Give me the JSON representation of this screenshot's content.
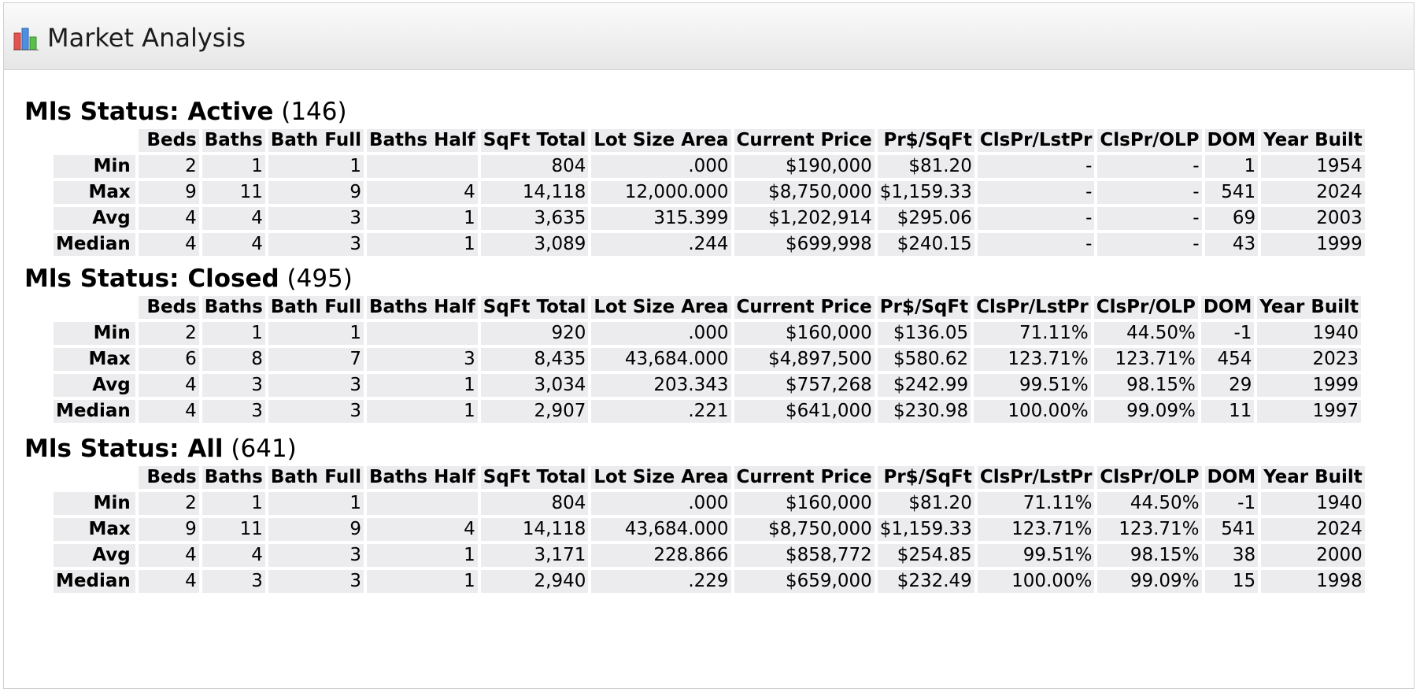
{
  "header": {
    "title": "Market Analysis",
    "icon": "bar-chart-icon"
  },
  "columns": [
    "Beds",
    "Baths",
    "Bath Full",
    "Baths Half",
    "SqFt Total",
    "Lot Size Area",
    "Current Price",
    "Pr$/SqFt",
    "ClsPr/LstPr",
    "ClsPr/OLP",
    "DOM",
    "Year Built"
  ],
  "sections": [
    {
      "label": "Mls Status: Active",
      "count": "(146)",
      "rows": [
        {
          "label": "Min",
          "values": [
            "2",
            "1",
            "1",
            "",
            "804",
            ".000",
            "$190,000",
            "$81.20",
            "-",
            "-",
            "1",
            "1954"
          ]
        },
        {
          "label": "Max",
          "values": [
            "9",
            "11",
            "9",
            "4",
            "14,118",
            "12,000.000",
            "$8,750,000",
            "$1,159.33",
            "-",
            "-",
            "541",
            "2024"
          ]
        },
        {
          "label": "Avg",
          "values": [
            "4",
            "4",
            "3",
            "1",
            "3,635",
            "315.399",
            "$1,202,914",
            "$295.06",
            "-",
            "-",
            "69",
            "2003"
          ]
        },
        {
          "label": "Median",
          "values": [
            "4",
            "4",
            "3",
            "1",
            "3,089",
            ".244",
            "$699,998",
            "$240.15",
            "-",
            "-",
            "43",
            "1999"
          ]
        }
      ]
    },
    {
      "label": "Mls Status: Closed",
      "count": "(495)",
      "rows": [
        {
          "label": "Min",
          "values": [
            "2",
            "1",
            "1",
            "",
            "920",
            ".000",
            "$160,000",
            "$136.05",
            "71.11%",
            "44.50%",
            "-1",
            "1940"
          ]
        },
        {
          "label": "Max",
          "values": [
            "6",
            "8",
            "7",
            "3",
            "8,435",
            "43,684.000",
            "$4,897,500",
            "$580.62",
            "123.71%",
            "123.71%",
            "454",
            "2023"
          ]
        },
        {
          "label": "Avg",
          "values": [
            "4",
            "3",
            "3",
            "1",
            "3,034",
            "203.343",
            "$757,268",
            "$242.99",
            "99.51%",
            "98.15%",
            "29",
            "1999"
          ]
        },
        {
          "label": "Median",
          "values": [
            "4",
            "3",
            "3",
            "1",
            "2,907",
            ".221",
            "$641,000",
            "$230.98",
            "100.00%",
            "99.09%",
            "11",
            "1997"
          ]
        }
      ]
    },
    {
      "label": "Mls Status: All",
      "count": "(641)",
      "rows": [
        {
          "label": "Min",
          "values": [
            "2",
            "1",
            "1",
            "",
            "804",
            ".000",
            "$160,000",
            "$81.20",
            "71.11%",
            "44.50%",
            "-1",
            "1940"
          ]
        },
        {
          "label": "Max",
          "values": [
            "9",
            "11",
            "9",
            "4",
            "14,118",
            "43,684.000",
            "$8,750,000",
            "$1,159.33",
            "123.71%",
            "123.71%",
            "541",
            "2024"
          ]
        },
        {
          "label": "Avg",
          "values": [
            "4",
            "4",
            "3",
            "1",
            "3,171",
            "228.866",
            "$858,772",
            "$254.85",
            "99.51%",
            "98.15%",
            "38",
            "2000"
          ]
        },
        {
          "label": "Median",
          "values": [
            "4",
            "3",
            "3",
            "1",
            "2,940",
            ".229",
            "$659,000",
            "$232.49",
            "100.00%",
            "99.09%",
            "15",
            "1998"
          ]
        }
      ]
    }
  ]
}
